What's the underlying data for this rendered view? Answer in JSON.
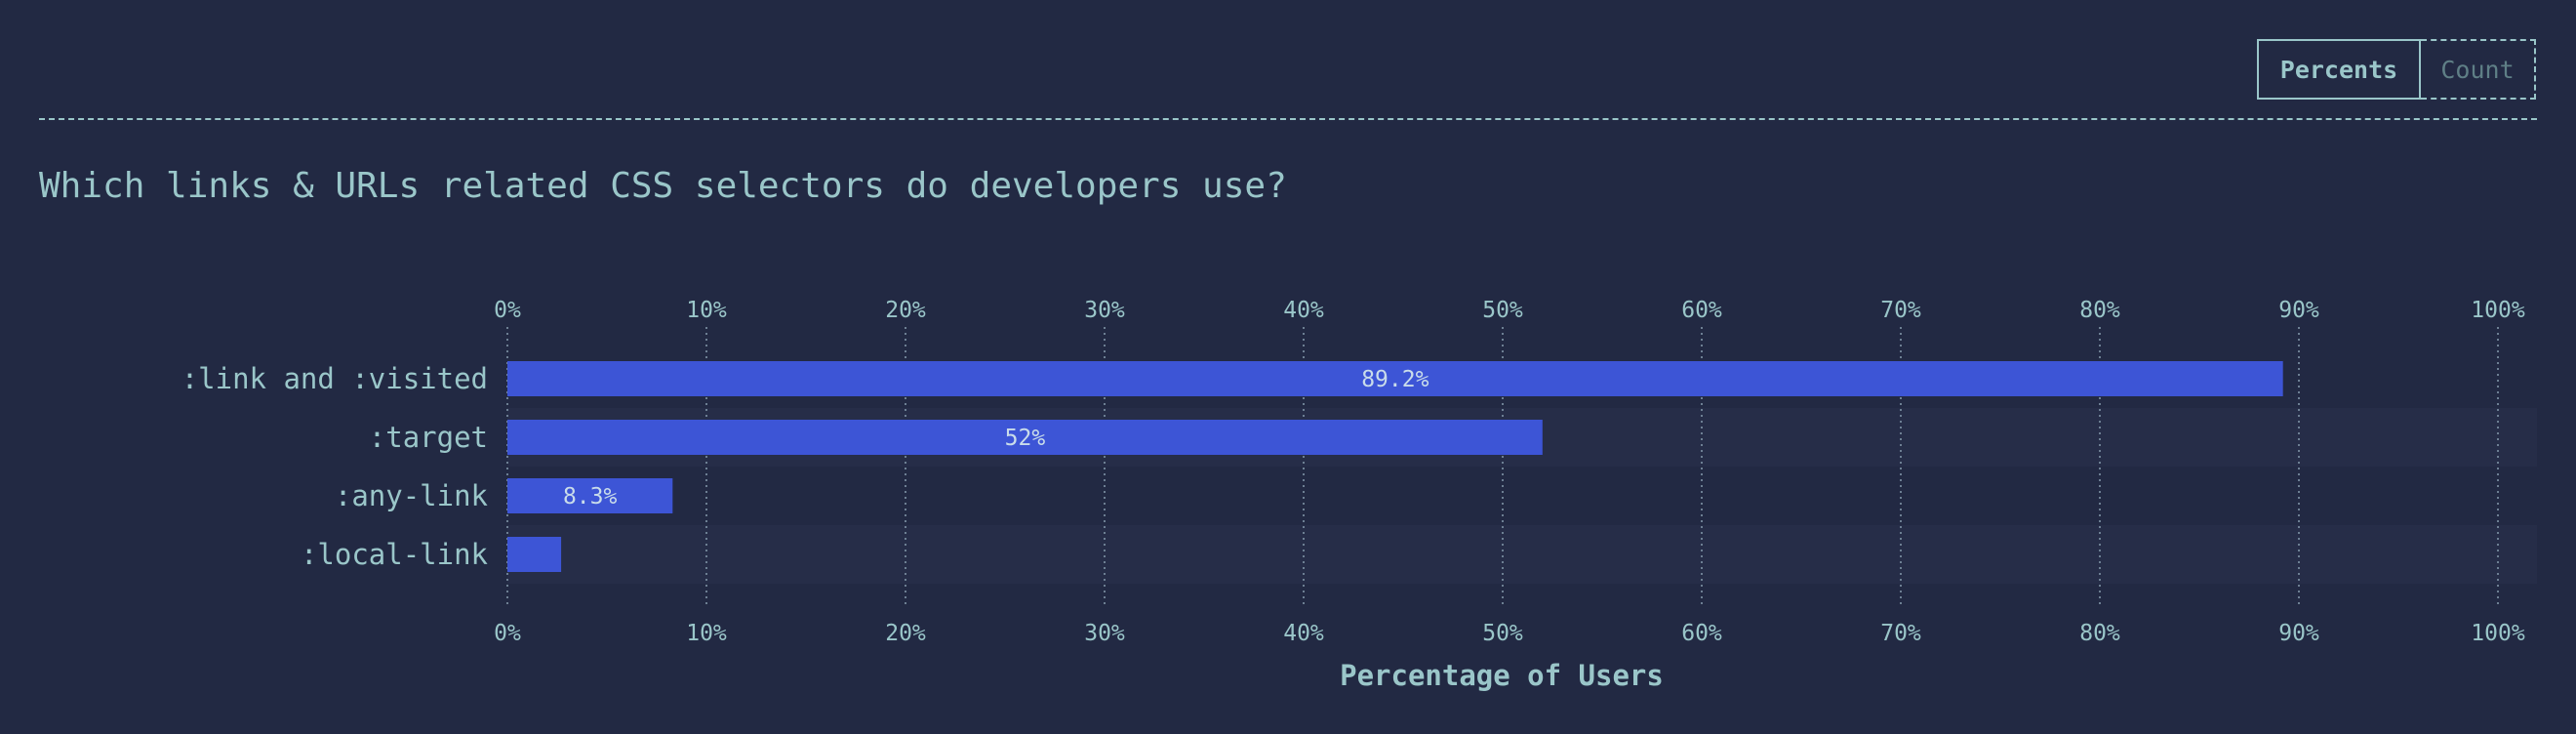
{
  "toggle": {
    "percents_label": "Percents",
    "count_label": "Count"
  },
  "title": "Which links & URLs related CSS selectors do developers use?",
  "colors": {
    "background": "#222943",
    "bar": "#3d55d6",
    "stripe": "#262d48",
    "text": "#9ac6c9",
    "grid": "#6d7f93"
  },
  "chart_data": {
    "type": "bar",
    "orientation": "horizontal",
    "title": "Which links & URLs related CSS selectors do developers use?",
    "xlabel": "Percentage of Users",
    "ylabel": "",
    "xlim": [
      0,
      100
    ],
    "ticks": [
      "0%",
      "10%",
      "20%",
      "30%",
      "40%",
      "50%",
      "60%",
      "70%",
      "80%",
      "90%",
      "100%"
    ],
    "grid": true,
    "categories": [
      ":link and :visited",
      ":target",
      ":any-link",
      ":local-link"
    ],
    "values": [
      89.2,
      52,
      8.3,
      2.7
    ],
    "value_labels": [
      "89.2%",
      "52%",
      "8.3%",
      ""
    ]
  }
}
